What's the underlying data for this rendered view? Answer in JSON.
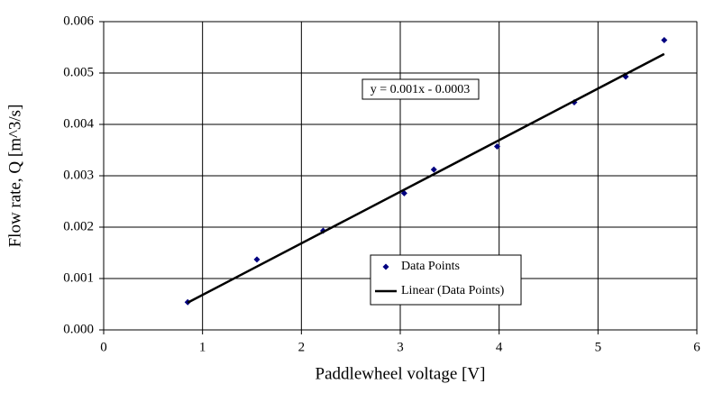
{
  "chart_data": {
    "type": "scatter",
    "xlabel": "Paddlewheel voltage [V]",
    "ylabel": "Flow rate, Q [m^3/s]",
    "annotation": "y = 0.001x - 0.0003",
    "series": [
      {
        "name": "Data Points",
        "color": "#000080",
        "mode": "markers",
        "x": [
          0.85,
          1.55,
          2.22,
          3.04,
          3.34,
          3.98,
          4.76,
          5.28,
          5.67
        ],
        "values": [
          0.00054,
          0.00137,
          0.00193,
          0.00266,
          0.00312,
          0.00357,
          0.00443,
          0.00493,
          0.00564
        ]
      },
      {
        "name": "Linear (Data Points)",
        "color": "#000000",
        "mode": "line",
        "x": [
          0.85,
          5.67
        ],
        "values": [
          0.00053,
          0.00537
        ]
      }
    ],
    "xlim": [
      0,
      6
    ],
    "xticks": [
      0,
      1,
      2,
      3,
      4,
      5,
      6
    ],
    "ylim": [
      0,
      0.006
    ],
    "yticks": [
      {
        "value": 0,
        "label": "0.000"
      },
      {
        "value": 0.001,
        "label": "0.001"
      },
      {
        "value": 0.002,
        "label": "0.002"
      },
      {
        "value": 0.003,
        "label": "0.003"
      },
      {
        "value": 0.004,
        "label": "0.004"
      },
      {
        "value": 0.005,
        "label": "0.005"
      },
      {
        "value": 0.006,
        "label": "0.006"
      }
    ],
    "grid": true
  }
}
